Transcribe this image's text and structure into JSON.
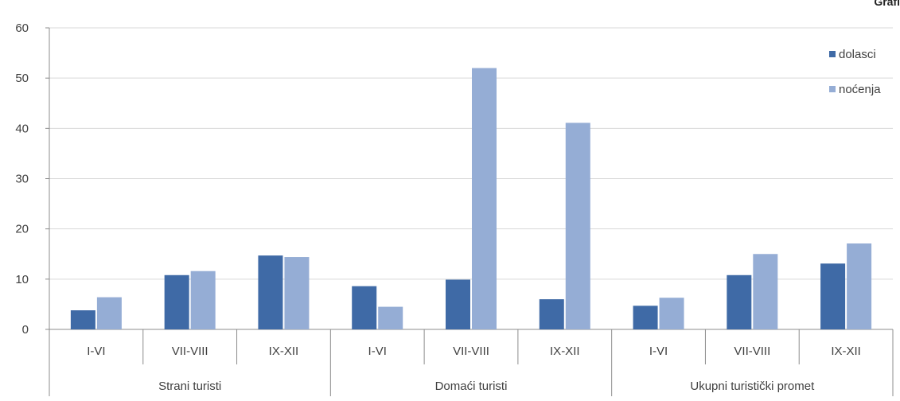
{
  "corner_title": "Grafi",
  "chart_data": {
    "type": "bar",
    "groups": [
      {
        "label": "Strani turisti",
        "categories": [
          "I-VI",
          "VII-VIII",
          "IX-XII"
        ]
      },
      {
        "label": "Domaći turisti",
        "categories": [
          "I-VI",
          "VII-VIII",
          "IX-XII"
        ]
      },
      {
        "label": "Ukupni turistički promet",
        "categories": [
          "I-VI",
          "VII-VIII",
          "IX-XII"
        ]
      }
    ],
    "series": [
      {
        "name": "dolasci",
        "color": "#3f6aa6",
        "values": [
          3.8,
          10.8,
          14.7,
          8.6,
          9.9,
          6.0,
          4.7,
          10.8,
          13.1
        ]
      },
      {
        "name": "noćenja",
        "color": "#95add5",
        "values": [
          6.4,
          11.6,
          14.4,
          4.5,
          52.0,
          41.1,
          6.3,
          15.0,
          17.1
        ]
      }
    ],
    "yticks": [
      0,
      10,
      20,
      30,
      40,
      50,
      60
    ],
    "ylim": [
      0,
      60
    ],
    "grid": true,
    "legend": "top-right"
  }
}
